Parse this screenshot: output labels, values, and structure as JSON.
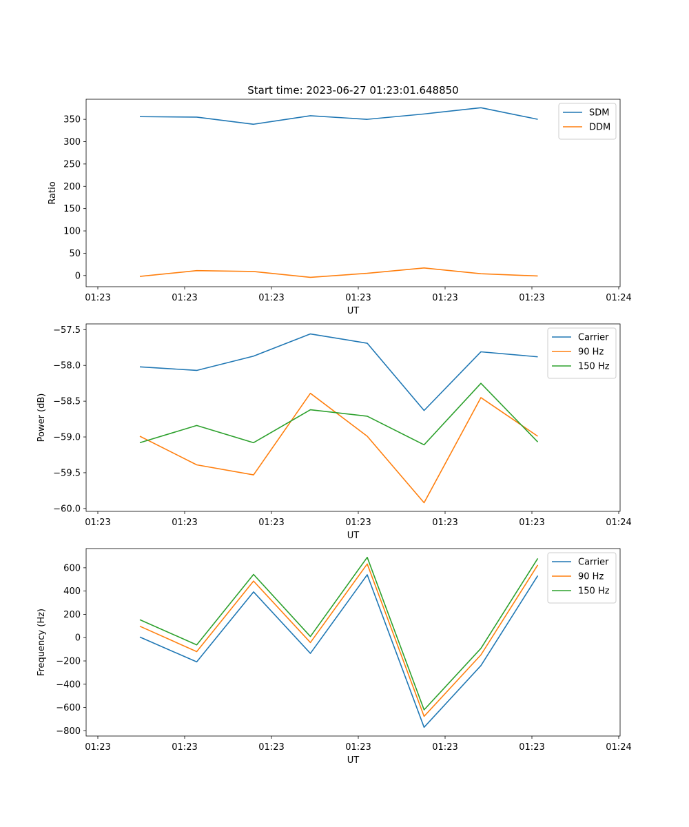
{
  "figure_title": "Start time: 2023-06-27 01:23:01.648850",
  "colors": {
    "C0": "#1f77b4",
    "C1": "#ff7f0e",
    "C2": "#2ca02c"
  },
  "chart_data": [
    {
      "type": "line",
      "title": "Start time: 2023-06-27 01:23:01.648850",
      "xlabel": "UT",
      "ylabel": "Ratio",
      "xtick_labels": [
        "01:23",
        "01:23",
        "01:23",
        "01:23",
        "01:23",
        "01:23",
        "01:24"
      ],
      "ylim": [
        -25,
        395
      ],
      "yticks": [
        0,
        50,
        100,
        150,
        200,
        250,
        300,
        350
      ],
      "ytick_labels": [
        "0",
        "50",
        "100",
        "150",
        "200",
        "250",
        "300",
        "350"
      ],
      "legend": "top-right",
      "series": [
        {
          "name": "SDM",
          "color": "C0",
          "values": [
            356,
            355,
            339,
            358,
            350,
            362,
            376,
            350
          ]
        },
        {
          "name": "DDM",
          "color": "C1",
          "values": [
            -2,
            11,
            9,
            -4,
            5,
            17,
            4,
            -1
          ]
        }
      ]
    },
    {
      "type": "line",
      "xlabel": "UT",
      "ylabel": "Power (dB)",
      "xtick_labels": [
        "01:23",
        "01:23",
        "01:23",
        "01:23",
        "01:23",
        "01:23",
        "01:24"
      ],
      "ylim": [
        -60.04,
        -57.42
      ],
      "yticks": [
        -60.0,
        -59.5,
        -59.0,
        -58.5,
        -58.0,
        -57.5
      ],
      "ytick_labels": [
        "−60.0",
        "−59.5",
        "−59.0",
        "−58.5",
        "−58.0",
        "−57.5"
      ],
      "legend": "top-right",
      "series": [
        {
          "name": "Carrier",
          "color": "C0",
          "values": [
            -58.02,
            -58.07,
            -57.87,
            -57.56,
            -57.69,
            -58.63,
            -57.81,
            -57.88
          ]
        },
        {
          "name": "90 Hz",
          "color": "C1",
          "values": [
            -58.99,
            -59.39,
            -59.53,
            -58.39,
            -58.99,
            -59.92,
            -58.45,
            -58.99
          ]
        },
        {
          "name": "150 Hz",
          "color": "C2",
          "values": [
            -59.08,
            -58.84,
            -59.08,
            -58.62,
            -58.71,
            -59.11,
            -58.25,
            -59.07
          ]
        }
      ]
    },
    {
      "type": "line",
      "xlabel": "UT",
      "ylabel": "Frequency (Hz)",
      "xtick_labels": [
        "01:23",
        "01:23",
        "01:23",
        "01:23",
        "01:23",
        "01:23",
        "01:24"
      ],
      "ylim": [
        -845,
        765
      ],
      "yticks": [
        -800,
        -600,
        -400,
        -200,
        0,
        200,
        400,
        600
      ],
      "ytick_labels": [
        "−800",
        "−600",
        "−400",
        "−200",
        "0",
        "200",
        "400",
        "600"
      ],
      "legend": "top-right",
      "series": [
        {
          "name": "Carrier",
          "color": "C0",
          "values": [
            5,
            -208,
            393,
            -135,
            540,
            -770,
            -240,
            532
          ]
        },
        {
          "name": "90 Hz",
          "color": "C1",
          "values": [
            98,
            -120,
            486,
            -42,
            633,
            -676,
            -148,
            624
          ]
        },
        {
          "name": "150 Hz",
          "color": "C2",
          "values": [
            154,
            -62,
            543,
            10,
            690,
            -620,
            -92,
            680
          ]
        }
      ]
    }
  ]
}
